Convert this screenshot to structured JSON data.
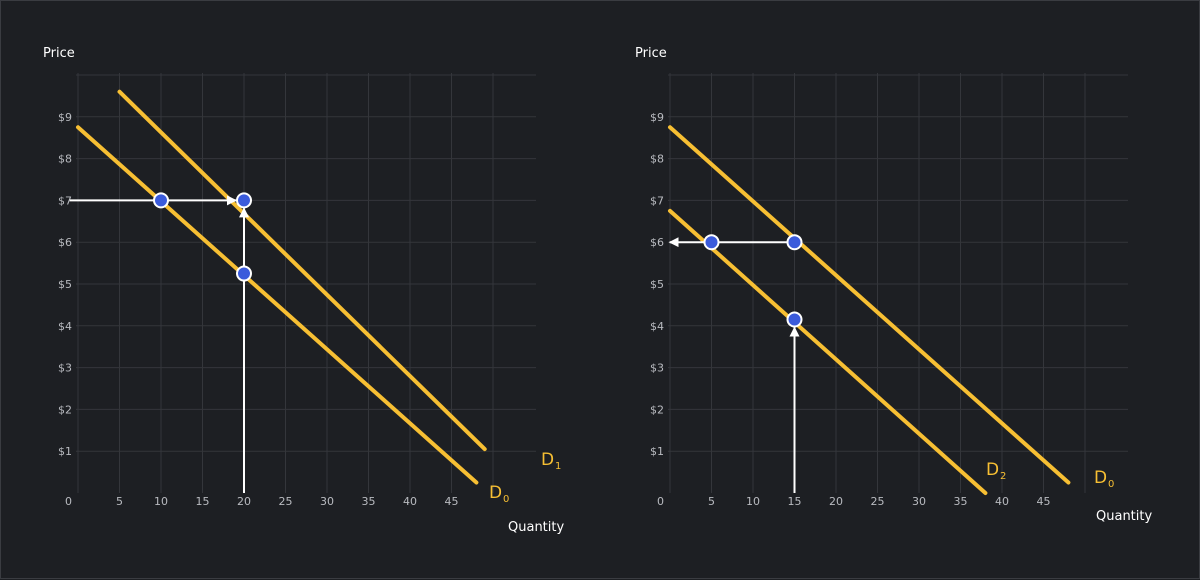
{
  "colors": {
    "background": "#1d1f23",
    "grid": "#34363b",
    "curve": "#f7bf33",
    "point": "#3b5bdb",
    "arrow": "#ffffff"
  },
  "chart_data": [
    {
      "type": "line",
      "title": "",
      "xlabel": "Quantity",
      "ylabel": "Price",
      "xlim": [
        0,
        50
      ],
      "ylim": [
        0,
        10
      ],
      "x_ticks": [
        "0",
        "5",
        "10",
        "15",
        "20",
        "25",
        "30",
        "35",
        "40",
        "45"
      ],
      "y_ticks": [
        "$1",
        "$2",
        "$3",
        "$4",
        "$5",
        "$6",
        "$7",
        "$8",
        "$9"
      ],
      "grid": true,
      "series": [
        {
          "name": "D",
          "subscript": "0",
          "points": [
            [
              0,
              8.75
            ],
            [
              48,
              0.25
            ]
          ]
        },
        {
          "name": "D",
          "subscript": "1",
          "points": [
            [
              5,
              9.6
            ],
            [
              49,
              1.05
            ]
          ]
        }
      ],
      "markers": [
        [
          10,
          7
        ],
        [
          20,
          7
        ],
        [
          20,
          5.25
        ]
      ],
      "arrows": [
        {
          "from": [
            -1,
            7
          ],
          "to": [
            20,
            7
          ]
        },
        {
          "from": [
            20,
            0
          ],
          "to": [
            20,
            7
          ]
        }
      ]
    },
    {
      "type": "line",
      "title": "",
      "xlabel": "Quantity",
      "ylabel": "Price",
      "xlim": [
        0,
        50
      ],
      "ylim": [
        0,
        10
      ],
      "x_ticks": [
        "0",
        "5",
        "10",
        "15",
        "20",
        "25",
        "30",
        "35",
        "40",
        "45"
      ],
      "y_ticks": [
        "$1",
        "$2",
        "$3",
        "$4",
        "$5",
        "$6",
        "$7",
        "$8",
        "$9"
      ],
      "grid": true,
      "series": [
        {
          "name": "D",
          "subscript": "0",
          "points": [
            [
              0,
              8.75
            ],
            [
              48,
              0.25
            ]
          ]
        },
        {
          "name": "D",
          "subscript": "2",
          "points": [
            [
              0,
              6.75
            ],
            [
              38,
              0
            ]
          ]
        }
      ],
      "markers": [
        [
          5,
          6
        ],
        [
          15,
          6
        ],
        [
          15,
          4.15
        ]
      ],
      "arrows": [
        {
          "from": [
            15,
            6
          ],
          "to": [
            -1,
            6
          ]
        },
        {
          "from": [
            15,
            0
          ],
          "to": [
            15,
            4.15
          ]
        }
      ]
    }
  ]
}
